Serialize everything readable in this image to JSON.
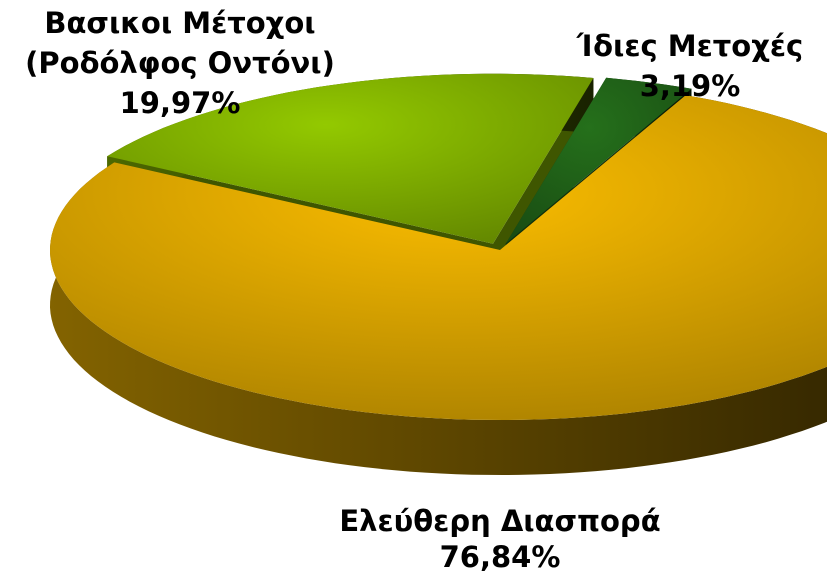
{
  "chart_data": {
    "type": "pie3d",
    "categories": [
      [
        "Βασικοι Μέτοχοι",
        "(Ροδόλφος Οντόνι)"
      ],
      [
        "Ίδιες Μετοχές"
      ],
      [
        "Ελεύθερη Διασπορά"
      ]
    ],
    "values": [
      19.97,
      3.19,
      76.84
    ],
    "value_labels": [
      "19,97%",
      "3,19%",
      "76,84%"
    ],
    "colors": [
      "#8cbf00",
      "#236b1a",
      "#efb400"
    ]
  }
}
